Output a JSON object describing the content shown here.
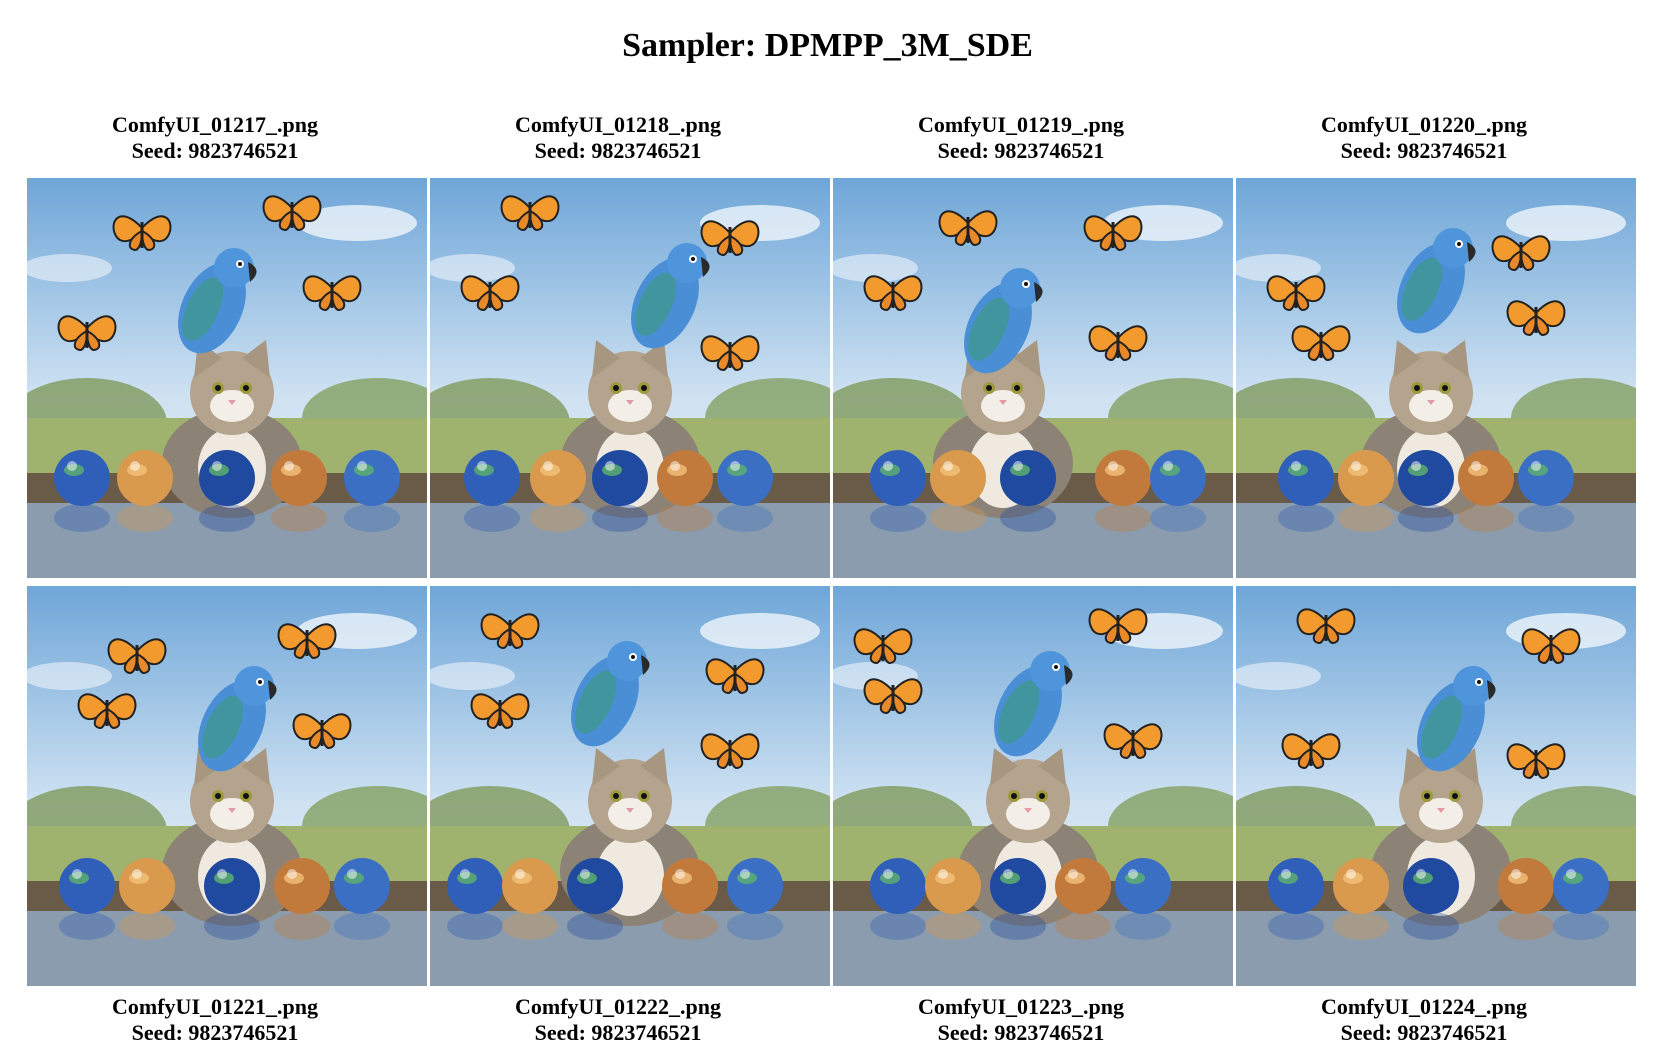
{
  "title": "Sampler: DPMPP_3M_SDE",
  "images": [
    {
      "filename": "ComfyUI_01217_.png",
      "seed": "Seed: 9823746521",
      "thumb_icon": "cat-parrot-butterflies-planets-image"
    },
    {
      "filename": "ComfyUI_01218_.png",
      "seed": "Seed: 9823746521",
      "thumb_icon": "cat-parrot-butterflies-planets-image"
    },
    {
      "filename": "ComfyUI_01219_.png",
      "seed": "Seed: 9823746521",
      "thumb_icon": "cat-parrot-butterflies-planets-image"
    },
    {
      "filename": "ComfyUI_01220_.png",
      "seed": "Seed: 9823746521",
      "thumb_icon": "cat-parrot-butterflies-planets-image"
    },
    {
      "filename": "ComfyUI_01221_.png",
      "seed": "Seed: 9823746521",
      "thumb_icon": "cat-parrot-butterflies-planets-image"
    },
    {
      "filename": "ComfyUI_01222_.png",
      "seed": "Seed: 9823746521",
      "thumb_icon": "cat-parrot-butterflies-planets-image"
    },
    {
      "filename": "ComfyUI_01223_.png",
      "seed": "Seed: 9823746521",
      "thumb_icon": "cat-parrot-butterflies-planets-image"
    },
    {
      "filename": "ComfyUI_01224_.png",
      "seed": "Seed: 9823746521",
      "thumb_icon": "cat-parrot-butterflies-planets-image"
    }
  ]
}
